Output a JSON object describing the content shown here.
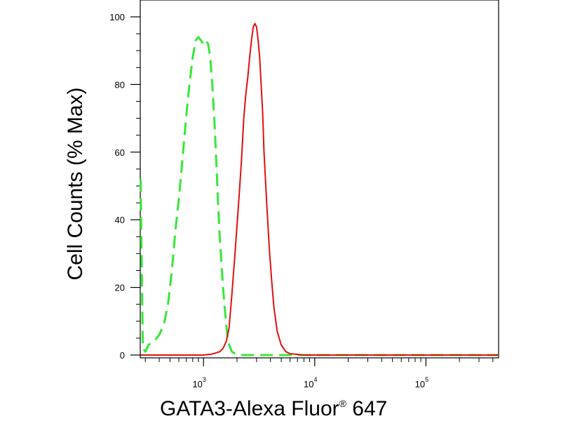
{
  "chart_data": {
    "type": "line",
    "xlabel": "GATA3-Alexa Fluor",
    "xlabel_superscript": "®",
    "xlabel_suffix": " 647",
    "ylabel": "Cell Counts (% Max)",
    "x_scale": "log",
    "xlim": [
      270,
      450000
    ],
    "ylim": [
      0,
      100
    ],
    "y_ticks": [
      0,
      20,
      40,
      60,
      80,
      100
    ],
    "y_tick_labels": [
      "0",
      "20",
      "40",
      "60",
      "80",
      "100"
    ],
    "x_ticks": [
      {
        "value": 1000,
        "base": "10",
        "exp": "3"
      },
      {
        "value": 10000,
        "base": "10",
        "exp": "4"
      },
      {
        "value": 100000,
        "base": "10",
        "exp": "5"
      }
    ],
    "grid": false,
    "series": [
      {
        "color": "#39e639",
        "style": "dashed",
        "x": [
          272,
          285,
          300,
          320,
          360,
          400,
          440,
          480,
          520,
          560,
          600,
          640,
          680,
          720,
          760,
          800,
          850,
          900,
          950,
          1000,
          1050,
          1100,
          1150,
          1200,
          1250,
          1300,
          1350,
          1400,
          1450,
          1500,
          1550,
          1600,
          1650,
          1700,
          1750,
          1800,
          1900,
          2000,
          2200,
          2500,
          3000,
          4000,
          6000,
          10000,
          20000,
          50000,
          100000,
          200000,
          450000
        ],
        "y": [
          52,
          2,
          1,
          3,
          4,
          6,
          9,
          15,
          25,
          37,
          46,
          56,
          66,
          75,
          82,
          88,
          93,
          94,
          93,
          92,
          93,
          92,
          88,
          80,
          70,
          58,
          45,
          35,
          27,
          20,
          14,
          9,
          5,
          3,
          2,
          1,
          0.5,
          0.3,
          0,
          0,
          0,
          0,
          0,
          0,
          0,
          0,
          0,
          0,
          0
        ]
      },
      {
        "color": "#e01010",
        "style": "solid",
        "x": [
          272,
          500,
          800,
          1000,
          1200,
          1400,
          1500,
          1600,
          1700,
          1800,
          1900,
          2000,
          2100,
          2200,
          2300,
          2400,
          2500,
          2600,
          2700,
          2800,
          2900,
          3000,
          3100,
          3200,
          3300,
          3400,
          3500,
          3700,
          3900,
          4100,
          4300,
          4600,
          5000,
          5500,
          6000,
          7000,
          8000,
          10000,
          20000,
          50000,
          100000,
          200000,
          450000
        ],
        "y": [
          0,
          0,
          0,
          0,
          0.3,
          1,
          2,
          4,
          8,
          18,
          28,
          38,
          48,
          58,
          70,
          77,
          82,
          88,
          93,
          97,
          98,
          97,
          93,
          88,
          80,
          72,
          60,
          45,
          32,
          22,
          14,
          7,
          3,
          1,
          0.4,
          0.2,
          0,
          0,
          0,
          0,
          0,
          0,
          0
        ]
      }
    ]
  }
}
